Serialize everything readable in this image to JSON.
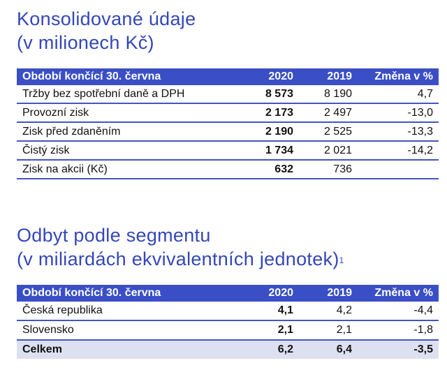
{
  "section1": {
    "title_line1": "Konsolidované údaje",
    "title_line2": "(v milionech Kč)",
    "headers": [
      "Období končící 30. června",
      "2020",
      "2019",
      "Změna v %"
    ],
    "rows": [
      [
        "Tržby bez spotřební daně a DPH",
        "8 573",
        "8 190",
        "4,7"
      ],
      [
        "Provozní zisk",
        "2 173",
        "2 497",
        "-13,0"
      ],
      [
        "Zisk před zdaněním",
        "2 190",
        "2 525",
        "-13,3"
      ],
      [
        "Čistý zisk",
        "1 734",
        "2 021",
        "-14,2"
      ],
      [
        "Zisk na akcii (Kč)",
        "632",
        "736",
        ""
      ]
    ]
  },
  "section2": {
    "title_line1": "Odbyt podle segmentu",
    "title_line2": "(v miliardách ekvivalentních jednotek)",
    "footnote_mark": "1",
    "headers": [
      "Období končící 30. června",
      "2020",
      "2019",
      "Změna v %"
    ],
    "rows": [
      [
        "Česká republika",
        "4,1",
        "4,2",
        "-4,4"
      ],
      [
        "Slovensko",
        "2,1",
        "2,1",
        "-1,8"
      ]
    ],
    "total": [
      "Celkem",
      "6,2",
      "6,4",
      "-3,5"
    ]
  },
  "colors": {
    "accent": "#3a4fc6",
    "heading": "#3447b8",
    "total_bg": "#dde0f0"
  }
}
